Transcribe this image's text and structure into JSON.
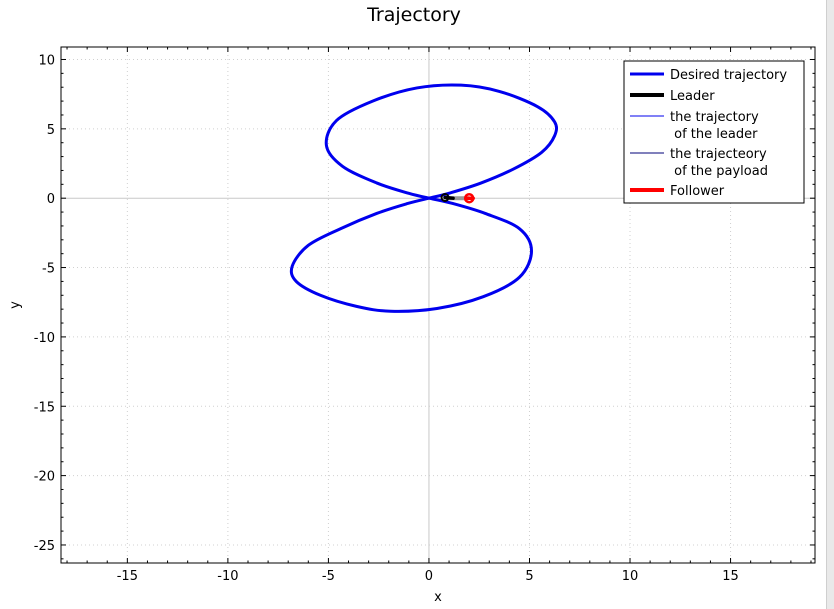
{
  "chart_data": {
    "type": "line",
    "title": "Trajectory",
    "xlabel": "x",
    "ylabel": "y",
    "xlim": [
      -18.3,
      19.2
    ],
    "ylim": [
      -26.3,
      10.9
    ],
    "xticks": [
      -15,
      -10,
      -5,
      0,
      5,
      10,
      15
    ],
    "yticks": [
      10,
      5,
      0,
      -5,
      -10,
      -15,
      -20,
      -25
    ],
    "grid": true,
    "legend_position": "top-right",
    "series": [
      {
        "name": "Desired trajectory",
        "color": "#0000ee",
        "style": "thick",
        "points": [
          [
            0,
            0
          ],
          [
            1.1,
            0.4
          ],
          [
            2.6,
            1.1
          ],
          [
            4.2,
            2.1
          ],
          [
            5.6,
            3.3
          ],
          [
            6.25,
            4.5
          ],
          [
            6.25,
            5.5
          ],
          [
            5.4,
            6.6
          ],
          [
            3.5,
            7.7
          ],
          [
            1.6,
            8.15
          ],
          [
            -0.6,
            7.95
          ],
          [
            -2.8,
            7.0
          ],
          [
            -4.6,
            5.6
          ],
          [
            -5.1,
            3.8
          ],
          [
            -4.3,
            2.3
          ],
          [
            -2.6,
            1.1
          ],
          [
            -1.0,
            0.35
          ],
          [
            0,
            0
          ]
        ]
      },
      {
        "name": "Leader",
        "color": "#000000",
        "style": "thick",
        "points": [
          [
            0.8,
            0.05
          ],
          [
            1.2,
            0.0
          ]
        ]
      },
      {
        "name": "the trajectory\n of the leader",
        "color": "#0000ee",
        "style": "thin",
        "points": []
      },
      {
        "name": "the trajecteory\n of the payload",
        "color": "#00007a",
        "style": "thin",
        "points": []
      },
      {
        "name": "Follower",
        "color": "#ff0000",
        "style": "thick",
        "points": [
          [
            1.85,
            0.0
          ],
          [
            2.2,
            0.0
          ]
        ]
      }
    ],
    "lower_loop_points": [
      [
        0,
        0
      ],
      [
        -1.1,
        -0.4
      ],
      [
        -2.6,
        -1.1
      ],
      [
        -4.4,
        -2.2
      ],
      [
        -6.0,
        -3.4
      ],
      [
        -6.8,
        -4.9
      ],
      [
        -6.6,
        -6.0
      ],
      [
        -5.4,
        -7.0
      ],
      [
        -3.6,
        -7.8
      ],
      [
        -1.9,
        -8.15
      ],
      [
        0.4,
        -7.95
      ],
      [
        2.7,
        -7.1
      ],
      [
        4.5,
        -5.7
      ],
      [
        5.1,
        -3.8
      ],
      [
        4.5,
        -2.2
      ],
      [
        2.8,
        -1.1
      ],
      [
        1.1,
        -0.35
      ],
      [
        0,
        0
      ]
    ],
    "payload_link": {
      "color": "#999999",
      "points": [
        [
          1.0,
          0.0
        ],
        [
          2.0,
          0.0
        ]
      ]
    }
  }
}
